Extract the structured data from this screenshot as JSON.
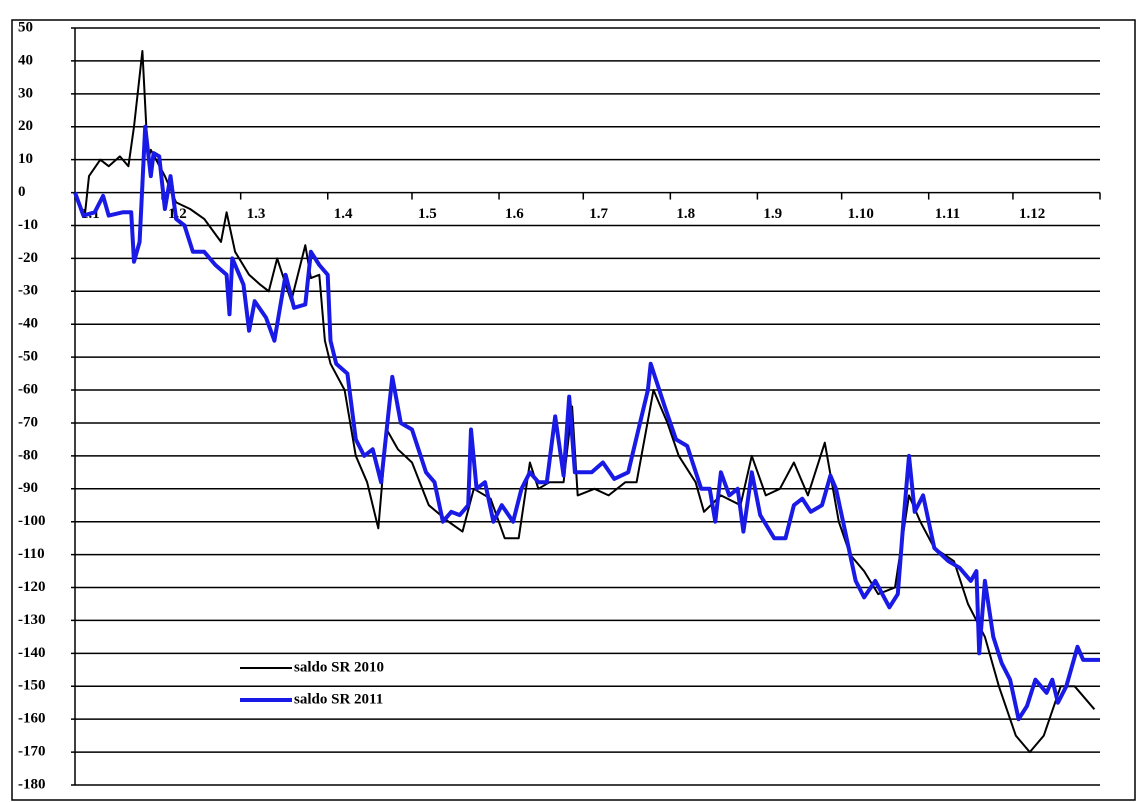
{
  "chart_data": {
    "type": "line",
    "xlim": [
      0,
      365
    ],
    "xticks": [
      {
        "value": 0,
        "label": "1.1"
      },
      {
        "value": 31,
        "label": "1.2"
      },
      {
        "value": 59,
        "label": "1.3"
      },
      {
        "value": 90,
        "label": "1.4"
      },
      {
        "value": 120,
        "label": "1.5"
      },
      {
        "value": 151,
        "label": "1.6"
      },
      {
        "value": 181,
        "label": "1.7"
      },
      {
        "value": 212,
        "label": "1.8"
      },
      {
        "value": 243,
        "label": "1.9"
      },
      {
        "value": 273,
        "label": "1.10"
      },
      {
        "value": 304,
        "label": "1.11"
      },
      {
        "value": 334,
        "label": "1.12"
      }
    ],
    "ylim": [
      -180,
      50
    ],
    "yticks": [
      50,
      40,
      30,
      20,
      10,
      0,
      -10,
      -20,
      -30,
      -40,
      -50,
      -60,
      -70,
      -80,
      -90,
      -100,
      -110,
      -120,
      -130,
      -140,
      -150,
      -160,
      -170,
      -180
    ],
    "grid": true,
    "series": [
      {
        "name": "saldo SR 2010",
        "color": "#000000",
        "x": [
          0,
          3.5,
          5,
          9,
          12,
          16,
          19,
          21,
          24,
          26,
          27,
          32,
          36,
          41,
          46,
          52,
          54,
          57,
          62,
          66,
          69,
          72,
          77,
          82,
          84,
          87,
          89,
          91,
          96,
          100,
          104,
          108,
          111,
          115,
          120,
          126,
          133,
          138,
          142,
          148,
          153,
          158,
          162,
          165,
          169,
          174,
          177,
          179,
          185,
          190,
          196,
          200,
          206,
          211,
          215,
          221,
          224,
          230,
          237,
          241,
          246,
          251,
          256,
          261,
          267,
          272,
          276,
          281,
          286,
          292,
          297,
          301,
          306,
          313,
          318,
          324,
          329,
          335,
          340,
          345,
          351,
          356,
          363
        ],
        "values": [
          0,
          -7,
          5,
          10,
          8,
          11,
          8,
          20,
          43,
          10,
          13,
          5,
          -3,
          -5,
          -8,
          -15,
          -6,
          -18,
          -25,
          -28,
          -30,
          -20,
          -33,
          -16,
          -26,
          -25,
          -45,
          -52,
          -60,
          -80,
          -88,
          -102,
          -72,
          -78,
          -82,
          -95,
          -100,
          -103,
          -90,
          -93,
          -105,
          -105,
          -82,
          -90,
          -88,
          -88,
          -65,
          -92,
          -90,
          -92,
          -88,
          -88,
          -60,
          -70,
          -80,
          -88,
          -97,
          -92,
          -95,
          -80,
          -92,
          -90,
          -82,
          -92,
          -76,
          -100,
          -110,
          -115,
          -122,
          -120,
          -92,
          -100,
          -108,
          -112,
          -125,
          -135,
          -150,
          -165,
          -170,
          -165,
          -150,
          -150,
          -157
        ]
      },
      {
        "name": "saldo SR 2011",
        "color": "#1a1ae6",
        "x": [
          0,
          3,
          7,
          10,
          12,
          17,
          20,
          21,
          23,
          25,
          27,
          28,
          30,
          32,
          34,
          36,
          39,
          42,
          46,
          50,
          54,
          55,
          56,
          60,
          62,
          64,
          68,
          71,
          75,
          78,
          82,
          84,
          87,
          90,
          91,
          93,
          97,
          100,
          103,
          106,
          109,
          113,
          116,
          120,
          125,
          128,
          131,
          134,
          137,
          140,
          141,
          143,
          146,
          149,
          152,
          156,
          159,
          162,
          165,
          168,
          171,
          174,
          176,
          178,
          184,
          188,
          192,
          197,
          204,
          205,
          210,
          214,
          218,
          223,
          226,
          228,
          230,
          233,
          236,
          238,
          241,
          244,
          249,
          253,
          256,
          259,
          262,
          266,
          269,
          271,
          274,
          278,
          281,
          285,
          290,
          293,
          295,
          297,
          299,
          302,
          306,
          311,
          315,
          319,
          321,
          322,
          324,
          327,
          330,
          333,
          336,
          339,
          342,
          346,
          348,
          350,
          353,
          357,
          359,
          365
        ],
        "values": [
          0,
          -7,
          -6,
          -1,
          -7,
          -6,
          -6,
          -21,
          -15,
          20,
          5,
          12,
          11,
          -5,
          5,
          -8,
          -10,
          -18,
          -18,
          -22,
          -25,
          -37,
          -20,
          -28,
          -42,
          -33,
          -38,
          -45,
          -25,
          -35,
          -34,
          -18,
          -22,
          -25,
          -45,
          -52,
          -55,
          -75,
          -80,
          -78,
          -88,
          -56,
          -70,
          -72,
          -85,
          -88,
          -100,
          -97,
          -98,
          -95,
          -72,
          -90,
          -88,
          -100,
          -95,
          -100,
          -90,
          -85,
          -88,
          -88,
          -68,
          -86,
          -62,
          -85,
          -85,
          -82,
          -87,
          -85,
          -60,
          -52,
          -65,
          -75,
          -77,
          -90,
          -90,
          -100,
          -85,
          -92,
          -90,
          -103,
          -85,
          -98,
          -105,
          -105,
          -95,
          -93,
          -97,
          -95,
          -86,
          -90,
          -102,
          -118,
          -123,
          -118,
          -126,
          -122,
          -100,
          -80,
          -97,
          -92,
          -108,
          -112,
          -114,
          -118,
          -115,
          -140,
          -118,
          -135,
          -143,
          -148,
          -160,
          -156,
          -148,
          -152,
          -148,
          -155,
          -150,
          -138,
          -142,
          -142
        ]
      }
    ]
  }
}
